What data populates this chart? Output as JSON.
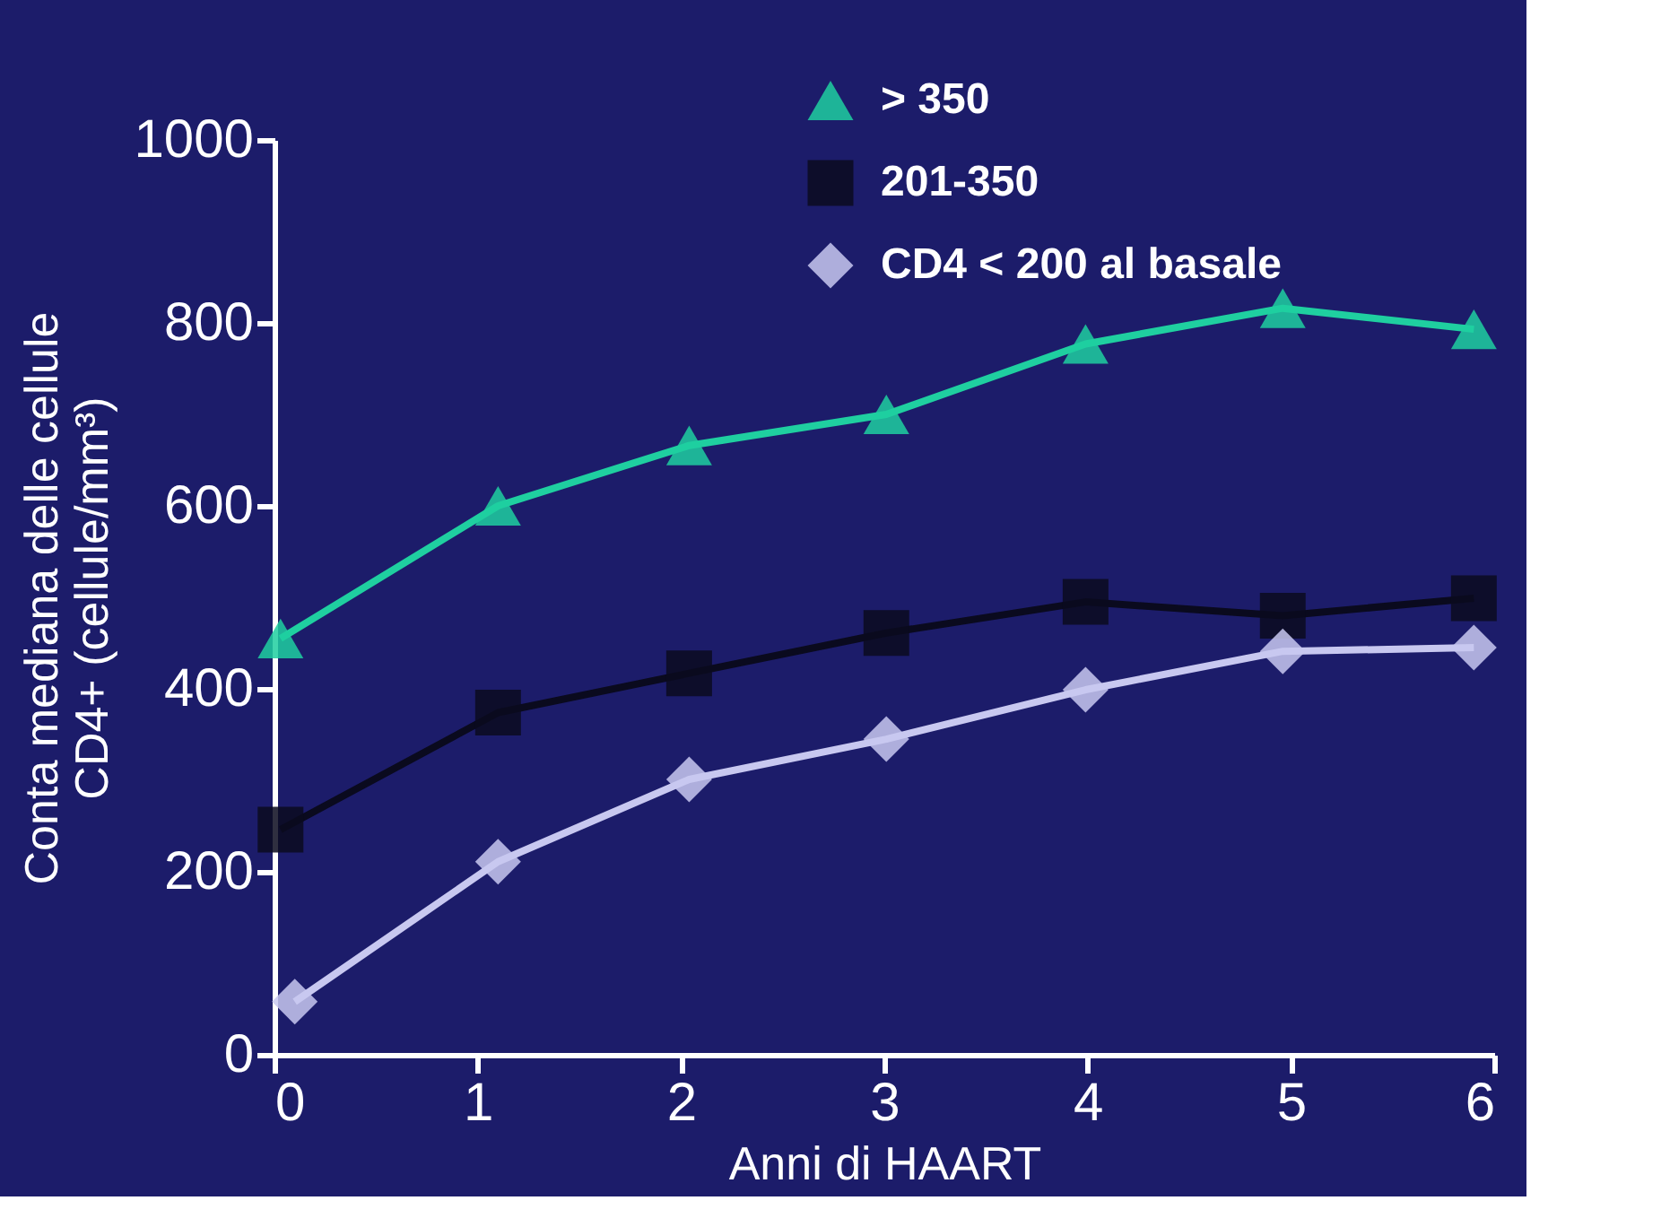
{
  "chart_data": {
    "type": "line",
    "xlabel": "Anni di HAART",
    "ylabel": "Conta mediana delle cellule\nCD4+ (cellule/mm³)",
    "xlim": [
      0,
      6
    ],
    "ylim": [
      0,
      1000
    ],
    "xticks": [
      0,
      1,
      2,
      3,
      4,
      5,
      6
    ],
    "yticks": [
      0,
      200,
      400,
      600,
      800,
      1000
    ],
    "grid": false,
    "legend": "top right",
    "line_style": "solid",
    "series": [
      {
        "name": "> 350",
        "color": "#1fcfa0",
        "marker": "triangle",
        "x": [
          0.03,
          1.1,
          2.04,
          3.01,
          3.99,
          4.96,
          5.9
        ],
        "values": [
          455,
          600,
          666,
          700,
          777,
          816,
          793
        ]
      },
      {
        "name": "201-350",
        "color": "#0a0a1e",
        "marker": "square",
        "x": [
          0.03,
          1.1,
          2.04,
          3.01,
          3.99,
          4.96,
          5.9
        ],
        "values": [
          246,
          374,
          417,
          461,
          495,
          480,
          499
        ]
      },
      {
        "name": "CD4 < 200 al basale",
        "color": "#c8c8f0",
        "marker": "diamond",
        "x": [
          0.1,
          1.1,
          2.04,
          3.01,
          3.99,
          4.96,
          5.9
        ],
        "values": [
          58,
          211,
          301,
          345,
          399,
          441,
          445
        ]
      }
    ]
  }
}
